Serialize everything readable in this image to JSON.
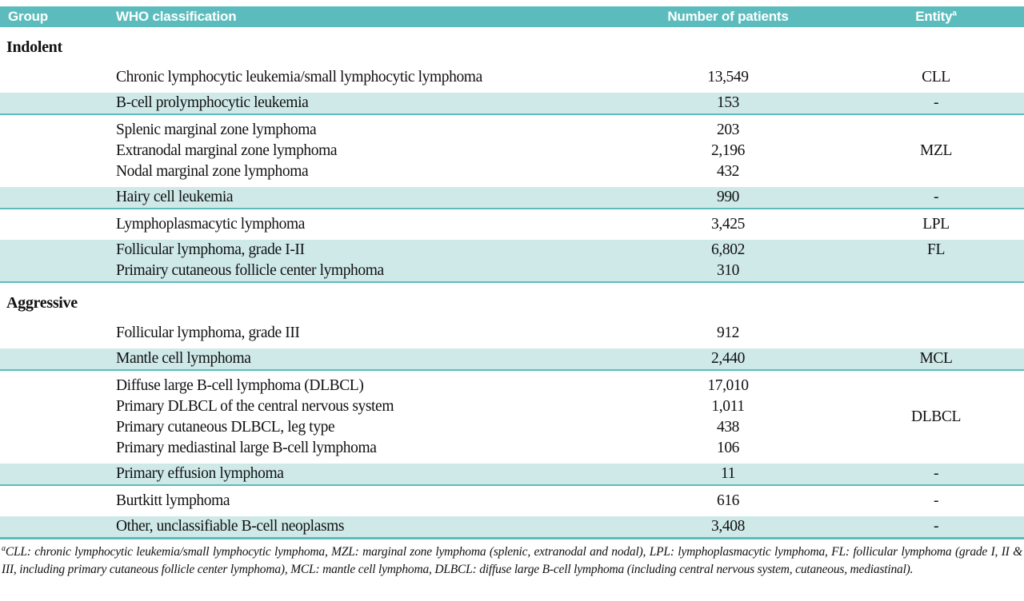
{
  "colors": {
    "header_bg": "#5cbcbd",
    "tint_row_bg": "#cfe9e9",
    "separator_line": "#5cbcbd",
    "header_text": "#ffffff",
    "body_text": "#111111"
  },
  "table": {
    "headers": {
      "group": "Group",
      "classification": "WHO classification",
      "patients": "Number of patients",
      "entity": "Entity",
      "entity_superscript": "a"
    },
    "blocks": [
      {
        "type": "section",
        "label": "Indolent"
      },
      {
        "type": "band",
        "bg": "white",
        "entity": "CLL",
        "entity_align": "center",
        "rows": [
          {
            "classification": "Chronic lymphocytic leukemia/small lymphocytic lymphoma",
            "patients": "13,549"
          }
        ]
      },
      {
        "type": "band",
        "bg": "tint",
        "entity": "-",
        "entity_align": "center",
        "rows": [
          {
            "classification": "B-cell prolymphocytic leukemia",
            "patients": "153"
          }
        ]
      },
      {
        "type": "band",
        "bg": "white",
        "entity": "MZL",
        "entity_align": "center",
        "rows": [
          {
            "classification": "Splenic marginal zone lymphoma",
            "patients": "203"
          },
          {
            "classification": "Extranodal marginal zone lymphoma",
            "patients": "2,196"
          },
          {
            "classification": "Nodal marginal zone lymphoma",
            "patients": "432"
          }
        ]
      },
      {
        "type": "band",
        "bg": "tint",
        "entity": "-",
        "entity_align": "center",
        "rows": [
          {
            "classification": "Hairy cell leukemia",
            "patients": "990"
          }
        ]
      },
      {
        "type": "band",
        "bg": "white",
        "entity": "LPL",
        "entity_align": "center",
        "rows": [
          {
            "classification": "Lymphoplasmacytic lymphoma",
            "patients": "3,425"
          }
        ]
      },
      {
        "type": "band",
        "bg": "tint",
        "entity": "FL",
        "entity_align": "first",
        "rows": [
          {
            "classification": "Follicular lymphoma, grade I-II",
            "patients": "6,802"
          },
          {
            "classification": "Primairy cutaneous follicle center lymphoma",
            "patients": "310"
          }
        ]
      },
      {
        "type": "section",
        "label": "Aggressive"
      },
      {
        "type": "band",
        "bg": "white",
        "entity": "",
        "entity_align": "center",
        "rows": [
          {
            "classification": "Follicular lymphoma, grade III",
            "patients": "912"
          }
        ]
      },
      {
        "type": "band",
        "bg": "tint",
        "entity": "MCL",
        "entity_align": "center",
        "rows": [
          {
            "classification": "Mantle cell lymphoma",
            "patients": "2,440"
          }
        ]
      },
      {
        "type": "band",
        "bg": "white",
        "entity": "DLBCL",
        "entity_align": "center",
        "rows": [
          {
            "classification": "Diffuse large B-cell lymphoma (DLBCL)",
            "patients": "17,010"
          },
          {
            "classification": "Primary DLBCL of the central nervous system",
            "patients": "1,011"
          },
          {
            "classification": "Primary cutaneous DLBCL, leg type",
            "patients": "438"
          },
          {
            "classification": "Primary mediastinal large B-cell lymphoma",
            "patients": "106"
          }
        ]
      },
      {
        "type": "band",
        "bg": "tint",
        "entity": "-",
        "entity_align": "center",
        "rows": [
          {
            "classification": "Primary effusion lymphoma",
            "patients": "11"
          }
        ]
      },
      {
        "type": "band",
        "bg": "white",
        "entity": "-",
        "entity_align": "center",
        "rows": [
          {
            "classification": "Burtkitt lymphoma",
            "patients": "616"
          }
        ]
      },
      {
        "type": "band",
        "bg": "tint",
        "entity": "-",
        "entity_align": "center",
        "last": true,
        "rows": [
          {
            "classification": "Other, unclassifiable B-cell neoplasms",
            "patients": "3,408"
          }
        ]
      }
    ]
  },
  "footnote": {
    "superscript": "a",
    "text": "CLL: chronic lymphocytic leukemia/small lymphocytic lymphoma, MZL: marginal zone lymphoma (splenic, extranodal and nodal), LPL: lymphoplasmacytic lymphoma, FL: follicular lymphoma (grade I, II & III, including primary cutaneous follicle center lymphoma), MCL: mantle cell lymphoma, DLBCL: diffuse large B-cell lymphoma (including central nervous system, cutaneous, mediastinal)."
  }
}
